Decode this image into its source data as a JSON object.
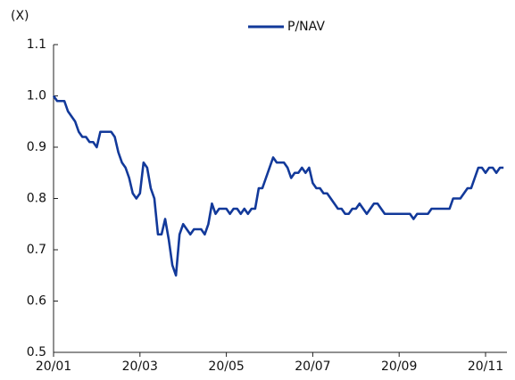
{
  "chart_data": {
    "type": "line",
    "y_label": "(X)",
    "categories": [
      "20/01",
      null,
      null,
      null,
      null,
      null,
      null,
      null,
      null,
      null,
      null,
      null,
      null,
      null,
      null,
      null,
      null,
      null,
      null,
      null,
      null,
      null,
      null,
      null,
      "20/03",
      null,
      null,
      null,
      null,
      null,
      null,
      null,
      null,
      null,
      null,
      null,
      null,
      null,
      null,
      null,
      null,
      null,
      null,
      null,
      null,
      null,
      null,
      null,
      "20/05",
      null,
      null,
      null,
      null,
      null,
      null,
      null,
      null,
      null,
      null,
      null,
      null,
      null,
      null,
      null,
      null,
      null,
      null,
      null,
      null,
      null,
      null,
      null,
      "20/07",
      null,
      null,
      null,
      null,
      null,
      null,
      null,
      null,
      null,
      null,
      null,
      null,
      null,
      null,
      null,
      null,
      null,
      null,
      null,
      null,
      null,
      null,
      null,
      "20/09",
      null,
      null,
      null,
      null,
      null,
      null,
      null,
      null,
      null,
      null,
      null,
      null,
      null,
      null,
      null,
      null,
      null,
      null,
      null,
      null,
      null,
      null,
      null,
      "20/11",
      null,
      null,
      null,
      null,
      null
    ],
    "series": [
      {
        "name": "P/NAV",
        "color": "#12399a",
        "values": [
          1.0,
          0.99,
          0.99,
          0.99,
          0.97,
          0.96,
          0.95,
          0.93,
          0.92,
          0.92,
          0.91,
          0.91,
          0.9,
          0.93,
          0.93,
          0.93,
          0.93,
          0.92,
          0.89,
          0.87,
          0.86,
          0.84,
          0.81,
          0.8,
          0.81,
          0.87,
          0.86,
          0.82,
          0.8,
          0.73,
          0.73,
          0.76,
          0.72,
          0.67,
          0.65,
          0.73,
          0.75,
          0.74,
          0.73,
          0.74,
          0.74,
          0.74,
          0.73,
          0.75,
          0.79,
          0.77,
          0.78,
          0.78,
          0.78,
          0.77,
          0.78,
          0.78,
          0.77,
          0.78,
          0.77,
          0.78,
          0.78,
          0.82,
          0.82,
          0.84,
          0.86,
          0.88,
          0.87,
          0.87,
          0.87,
          0.86,
          0.84,
          0.85,
          0.85,
          0.86,
          0.85,
          0.86,
          0.83,
          0.82,
          0.82,
          0.81,
          0.81,
          0.8,
          0.79,
          0.78,
          0.78,
          0.77,
          0.77,
          0.78,
          0.78,
          0.79,
          0.78,
          0.77,
          0.78,
          0.79,
          0.79,
          0.78,
          0.77,
          0.77,
          0.77,
          0.77,
          0.77,
          0.77,
          0.77,
          0.77,
          0.76,
          0.77,
          0.77,
          0.77,
          0.77,
          0.78,
          0.78,
          0.78,
          0.78,
          0.78,
          0.78,
          0.8,
          0.8,
          0.8,
          0.81,
          0.82,
          0.82,
          0.84,
          0.86,
          0.86,
          0.85,
          0.86,
          0.86,
          0.85,
          0.86,
          0.86
        ]
      }
    ],
    "ylim": [
      0.5,
      1.1
    ],
    "yticks": [
      0.5,
      0.6,
      0.7,
      0.8,
      0.9,
      {
        "value": 1.0,
        "label": "1.0"
      },
      1.1
    ],
    "grid": false,
    "legend": "top"
  }
}
